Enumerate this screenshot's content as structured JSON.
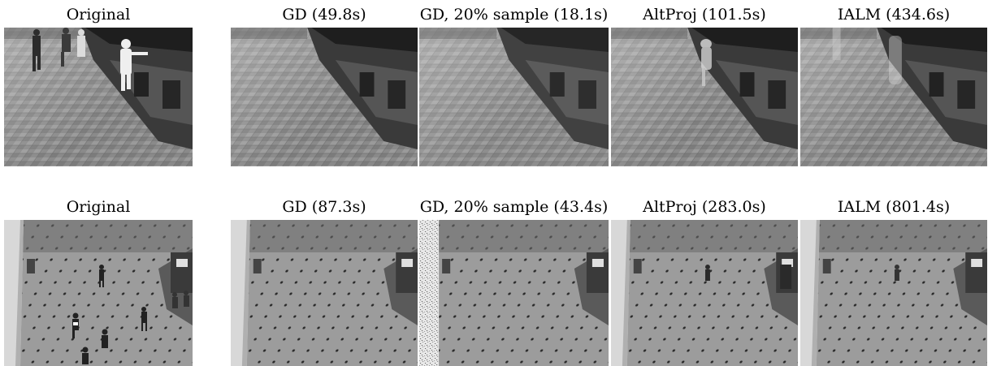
{
  "figure": {
    "rows": [
      {
        "scene": "lobby",
        "panels": [
          {
            "caption": "Original"
          },
          {
            "caption": "GD (49.8s)"
          },
          {
            "caption": "GD, 20% sample (18.1s)"
          },
          {
            "caption": "AltProj (101.5s)"
          },
          {
            "caption": "IALM (434.6s)"
          }
        ]
      },
      {
        "scene": "mall",
        "panels": [
          {
            "caption": "Original"
          },
          {
            "caption": "GD (87.3s)"
          },
          {
            "caption": "GD, 20% sample (43.4s)"
          },
          {
            "caption": "AltProj (283.0s)"
          },
          {
            "caption": "IALM (801.4s)"
          }
        ]
      }
    ]
  }
}
